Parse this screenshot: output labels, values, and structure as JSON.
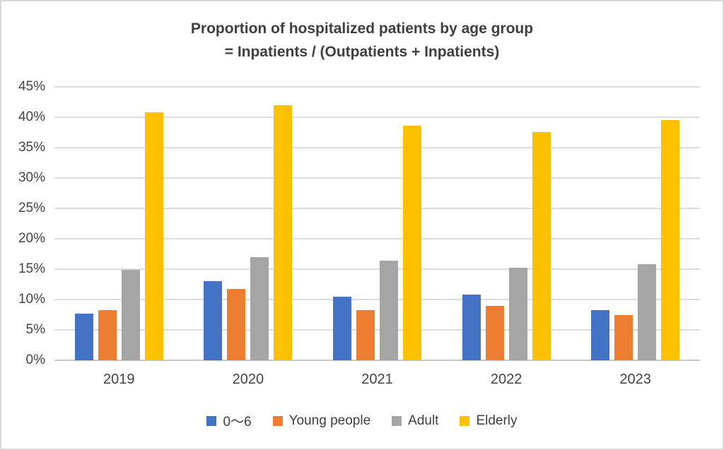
{
  "title": {
    "line1": "Proportion of hospitalized patients by age group",
    "line2": "= Inpatients / (Outpatients + Inpatients)"
  },
  "chart_data": {
    "type": "bar",
    "title": "Proportion of hospitalized patients by age group = Inpatients / (Outpatients + Inpatients)",
    "categories": [
      "2019",
      "2020",
      "2021",
      "2022",
      "2023"
    ],
    "series": [
      {
        "name": "0〜6",
        "color": "#4472C4",
        "values": [
          7.7,
          13.0,
          10.5,
          10.8,
          8.3
        ]
      },
      {
        "name": "Young people",
        "color": "#ED7D31",
        "values": [
          8.3,
          11.7,
          8.3,
          8.9,
          7.4
        ]
      },
      {
        "name": "Adult",
        "color": "#A5A5A5",
        "values": [
          14.9,
          17.0,
          16.4,
          15.2,
          15.8
        ]
      },
      {
        "name": "Elderly",
        "color": "#FFC000",
        "values": [
          40.8,
          42.0,
          38.6,
          37.6,
          39.5
        ]
      }
    ],
    "y_axis": {
      "min": 0,
      "max": 45,
      "step": 5,
      "tick_labels": [
        "0%",
        "5%",
        "10%",
        "15%",
        "20%",
        "25%",
        "30%",
        "35%",
        "40%",
        "45%"
      ],
      "format": "percent"
    },
    "xlabel": "",
    "ylabel": "",
    "grid": true,
    "legend_position": "bottom",
    "colors": {
      "gridline": "#dcdcdc",
      "axis_line": "#c9c9c9",
      "axis_text": "#444444",
      "title_text": "#3f3f3f",
      "frame_border": "#d9d9d9",
      "background": "#ffffff"
    }
  }
}
